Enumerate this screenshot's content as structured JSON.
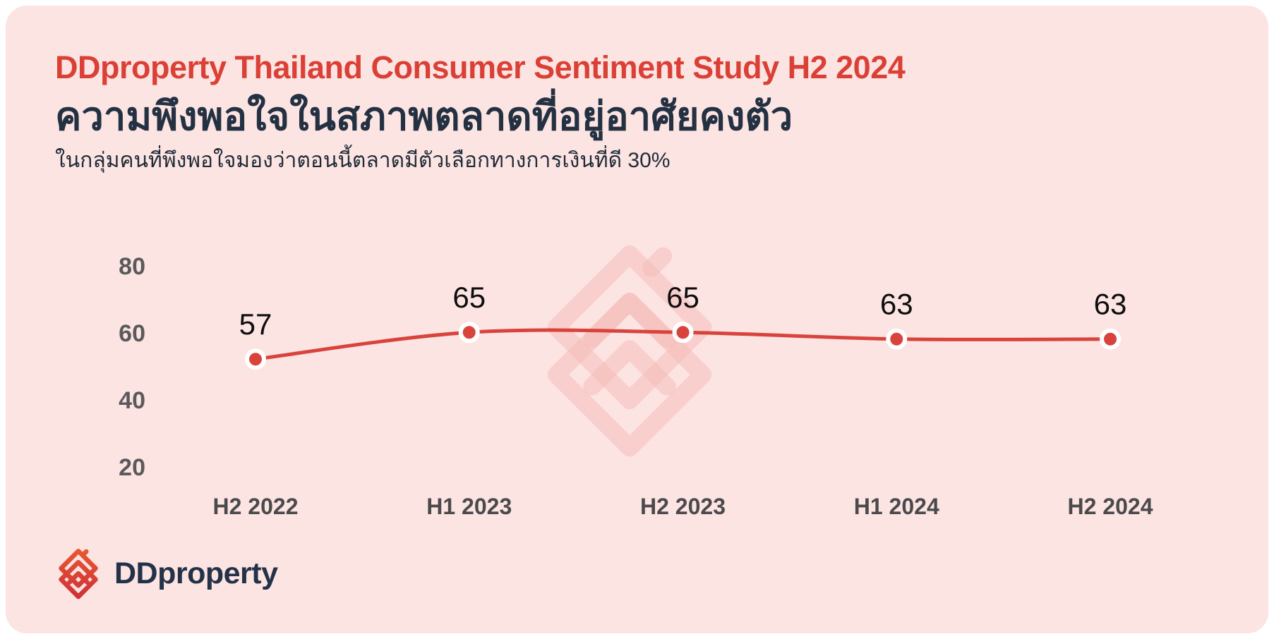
{
  "page": {
    "report_title": "DDproperty Thailand Consumer Sentiment Study H2 2024",
    "heading_th": "ความพึงพอใจในสภาพตลาดที่อยู่อาศัยคงตัว",
    "subtitle_th": "ในกลุ่มคนที่พึงพอใจมองว่าตอนนี้ตลาดมีตัวเลือกทางการเงินที่ดี 30%"
  },
  "brand": {
    "logo_text": "DDproperty",
    "logo_icon": "dd-chevron-house-icon",
    "watermark_icon": "dd-chevron-house-watermark",
    "colors": {
      "accent_red": "#DB4036",
      "navy": "#233142",
      "card_pink": "#FCE4E2",
      "watermark_pink": "#F3B6B3",
      "logo_red_top": "#E85A33",
      "logo_red_bottom": "#CE2F36"
    }
  },
  "chart_data": {
    "type": "line",
    "categories": [
      "H2 2022",
      "H1 2023",
      "H2 2023",
      "H1 2024",
      "H2 2024"
    ],
    "values": [
      57,
      65,
      65,
      63,
      63
    ],
    "yticks": [
      80,
      60,
      40,
      20
    ],
    "ylim": [
      20,
      80
    ],
    "grid": false,
    "legend": false,
    "line_color": "#D8443C",
    "point_color": "#D8443C",
    "point_halo_color": "#FFFFFF",
    "data_label_color": "#0E0E0E",
    "ytick_color": "#5A5A5C",
    "xtick_color": "#4A4A4C"
  }
}
